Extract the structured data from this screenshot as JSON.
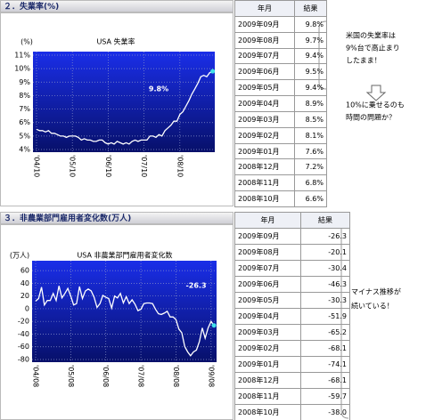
{
  "sections": [
    {
      "header": "２．失業率(%)",
      "chart": {
        "type": "line",
        "title": "USA 失業率",
        "unit_label": "(%)",
        "categories": [
          "'04/10",
          null,
          null,
          null,
          null,
          null,
          null,
          null,
          null,
          null,
          null,
          null,
          "'05/10",
          null,
          null,
          null,
          null,
          null,
          null,
          null,
          null,
          null,
          null,
          null,
          "'06/10",
          null,
          null,
          null,
          null,
          null,
          null,
          null,
          null,
          null,
          null,
          null,
          "'07/10",
          null,
          null,
          null,
          null,
          null,
          null,
          null,
          null,
          null,
          null,
          null,
          "'08/10",
          null,
          null,
          null,
          null,
          null,
          null,
          null,
          null,
          null,
          null,
          null
        ],
        "values": [
          5.5,
          5.4,
          5.4,
          5.3,
          5.4,
          5.2,
          5.2,
          5.1,
          5.0,
          5.0,
          4.9,
          5.0,
          5.0,
          5.0,
          4.9,
          4.7,
          4.8,
          4.7,
          4.7,
          4.6,
          4.6,
          4.7,
          4.7,
          4.5,
          4.4,
          4.5,
          4.4,
          4.6,
          4.5,
          4.4,
          4.5,
          4.4,
          4.6,
          4.7,
          4.6,
          4.7,
          4.7,
          4.7,
          5.0,
          5.0,
          4.9,
          5.1,
          5.0,
          5.4,
          5.6,
          5.8,
          6.1,
          6.1,
          6.6,
          6.8,
          7.2,
          7.6,
          8.1,
          8.5,
          8.9,
          9.4,
          9.5,
          9.4,
          9.7,
          9.8
        ],
        "color": "#ffffff",
        "ylim": [
          4,
          11
        ],
        "yticks": [
          {
            "value": 4,
            "label": "4%"
          },
          {
            "value": 5,
            "label": "5%"
          },
          {
            "value": 6,
            "label": "6%"
          },
          {
            "value": 7,
            "label": "7%"
          },
          {
            "value": 8,
            "label": "8%"
          },
          {
            "value": 9,
            "label": "9%"
          },
          {
            "value": 10,
            "label": "10%"
          },
          {
            "value": 11,
            "label": "11%"
          }
        ],
        "annotation": "9.8%",
        "grid": true
      },
      "table": {
        "columns": [
          "年月",
          "結果"
        ],
        "rows": [
          [
            "2009年09月",
            "9.8%"
          ],
          [
            "2009年08月",
            "9.7%"
          ],
          [
            "2009年07月",
            "9.4%"
          ],
          [
            "2009年06月",
            "9.5%"
          ],
          [
            "2009年05月",
            "9.4%"
          ],
          [
            "2009年04月",
            "8.9%"
          ],
          [
            "2009年03月",
            "8.5%"
          ],
          [
            "2009年02月",
            "8.1%"
          ],
          [
            "2009年01月",
            "7.6%"
          ],
          [
            "2008年12月",
            "7.2%"
          ],
          [
            "2008年11月",
            "6.8%"
          ],
          [
            "2008年10月",
            "6.6%"
          ]
        ]
      },
      "note": [
        "米国の失業率は",
        "9%台で高止まり",
        "したまま！",
        "10%に乗せるのも",
        "時間の問題か？"
      ]
    },
    {
      "header": "３．非農業部門雇用者変化数(万人)",
      "chart": {
        "type": "line",
        "title": "USA 非農業部門雇用者変化数",
        "unit_label": "(万人)",
        "categories": [
          "'04/08",
          null,
          null,
          null,
          null,
          null,
          null,
          null,
          null,
          null,
          null,
          null,
          "'05/08",
          null,
          null,
          null,
          null,
          null,
          null,
          null,
          null,
          null,
          null,
          null,
          "'06/08",
          null,
          null,
          null,
          null,
          null,
          null,
          null,
          null,
          null,
          null,
          null,
          "'07/08",
          null,
          null,
          null,
          null,
          null,
          null,
          null,
          null,
          null,
          null,
          null,
          "'08/08",
          null,
          null,
          null,
          null,
          null,
          null,
          null,
          null,
          null,
          null,
          null,
          "'09/08",
          null
        ],
        "values": [
          12,
          16,
          34,
          6,
          13,
          13,
          24,
          13,
          36,
          17,
          24,
          32,
          20,
          6,
          8,
          35,
          16,
          28,
          31,
          28,
          18,
          2,
          8,
          21,
          18,
          16,
          1,
          20,
          17,
          24,
          9,
          19,
          8,
          14,
          7,
          -3,
          -1,
          8,
          9,
          9,
          8,
          -1,
          -8,
          -9,
          -7,
          -4,
          -13,
          -13,
          -17,
          -32,
          -38.0,
          -59.7,
          -68.1,
          -74.1,
          -68.1,
          -65.2,
          -51.9,
          -30.3,
          -46.3,
          -30.4,
          -20.1,
          -26.3
        ],
        "color": "#ffffff",
        "ylim": [
          -80,
          70
        ],
        "yticks": [
          60,
          40,
          20,
          0,
          -20,
          -40,
          -60,
          -80
        ],
        "annotation": "-26.3",
        "grid": true
      },
      "table": {
        "columns": [
          "年月",
          "結果"
        ],
        "rows": [
          [
            "2009年09月",
            "-26.3"
          ],
          [
            "2009年08月",
            "-20.1"
          ],
          [
            "2009年07月",
            "-30.4"
          ],
          [
            "2009年06月",
            "-46.3"
          ],
          [
            "2009年05月",
            "-30.3"
          ],
          [
            "2009年04月",
            "-51.9"
          ],
          [
            "2009年03月",
            "-65.2"
          ],
          [
            "2009年02月",
            "-68.1"
          ],
          [
            "2009年01月",
            "-74.1"
          ],
          [
            "2008年12月",
            "-68.1"
          ],
          [
            "2008年11月",
            "-59.7"
          ],
          [
            "2008年10月",
            "-38.0"
          ]
        ]
      },
      "note": [
        "マイナス推移が",
        "続いている！"
      ]
    }
  ]
}
